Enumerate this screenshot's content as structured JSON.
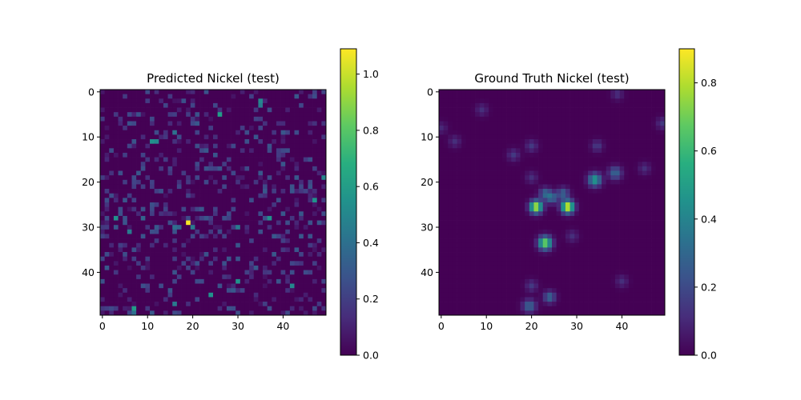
{
  "chart_data": [
    {
      "type": "heatmap",
      "title": "Predicted Nickel (test)",
      "colormap": "viridis",
      "grid": false,
      "grid_size": [
        50,
        50
      ],
      "xlim": [
        -0.5,
        49.5
      ],
      "ylim": [
        49.5,
        -0.5
      ],
      "x_ticks": [
        "0",
        "10",
        "20",
        "30",
        "40"
      ],
      "y_ticks": [
        "0",
        "10",
        "20",
        "30",
        "40"
      ],
      "colorbar": {
        "min": 0.0,
        "max": 1.09,
        "ticks": [
          "0.0",
          "0.2",
          "0.4",
          "0.6",
          "0.8",
          "1.0"
        ]
      },
      "background_value": 0.0,
      "noise_seed": 7,
      "noise_density": 0.22,
      "noise_range": [
        0.05,
        0.3
      ],
      "cells": [
        {
          "x": 19,
          "y": 29,
          "value": 1.08
        },
        {
          "x": 3,
          "y": 28,
          "value": 0.55
        },
        {
          "x": 37,
          "y": 28,
          "value": 0.55
        },
        {
          "x": 26,
          "y": 5,
          "value": 0.6
        },
        {
          "x": 11,
          "y": 11,
          "value": 0.55
        },
        {
          "x": 12,
          "y": 11,
          "value": 0.5
        },
        {
          "x": 35,
          "y": 2,
          "value": 0.5
        },
        {
          "x": 35,
          "y": 3,
          "value": 0.45
        },
        {
          "x": 49,
          "y": 19,
          "value": 0.5
        },
        {
          "x": 47,
          "y": 24,
          "value": 0.55
        },
        {
          "x": 6,
          "y": 31,
          "value": 0.45
        },
        {
          "x": 16,
          "y": 30,
          "value": 0.4
        },
        {
          "x": 17,
          "y": 30,
          "value": 0.35
        },
        {
          "x": 20,
          "y": 30,
          "value": 0.45
        },
        {
          "x": 30,
          "y": 30,
          "value": 0.45
        },
        {
          "x": 30,
          "y": 42,
          "value": 0.55
        },
        {
          "x": 24,
          "y": 45,
          "value": 0.55
        },
        {
          "x": 7,
          "y": 48,
          "value": 0.6
        },
        {
          "x": 7,
          "y": 49,
          "value": 0.4
        },
        {
          "x": 16,
          "y": 47,
          "value": 0.45
        },
        {
          "x": 42,
          "y": 43,
          "value": 0.5
        },
        {
          "x": 16,
          "y": 9,
          "value": 0.4
        },
        {
          "x": 9,
          "y": 28,
          "value": 0.35
        },
        {
          "x": 29,
          "y": 44,
          "value": 0.3
        },
        {
          "x": 44,
          "y": 32,
          "value": 0.3
        },
        {
          "x": 43,
          "y": 19,
          "value": 0.3
        },
        {
          "x": 1,
          "y": 39,
          "value": 0.3
        },
        {
          "x": 38,
          "y": 32,
          "value": 0.3
        }
      ]
    },
    {
      "type": "heatmap",
      "title": "Ground Truth Nickel (test)",
      "colormap": "viridis",
      "grid": false,
      "grid_size": [
        50,
        50
      ],
      "xlim": [
        -0.5,
        49.5
      ],
      "ylim": [
        49.5,
        -0.5
      ],
      "x_ticks": [
        "0",
        "10",
        "20",
        "30",
        "40"
      ],
      "y_ticks": [
        "0",
        "10",
        "20",
        "30",
        "40"
      ],
      "colorbar": {
        "min": 0.0,
        "max": 0.9,
        "ticks": [
          "0.0",
          "0.2",
          "0.4",
          "0.6",
          "0.8"
        ]
      },
      "background_value": 0.0,
      "blobs": [
        {
          "x": 39,
          "y": 0.5,
          "amp": 0.12,
          "sigma": 0.9
        },
        {
          "x": 9,
          "y": 4,
          "amp": 0.12,
          "sigma": 0.9
        },
        {
          "x": 49,
          "y": 7,
          "amp": 0.15,
          "sigma": 0.9
        },
        {
          "x": 0,
          "y": 8,
          "amp": 0.1,
          "sigma": 0.9
        },
        {
          "x": 3,
          "y": 11,
          "amp": 0.12,
          "sigma": 0.9
        },
        {
          "x": 20,
          "y": 12,
          "amp": 0.15,
          "sigma": 0.9
        },
        {
          "x": 34.5,
          "y": 12,
          "amp": 0.15,
          "sigma": 0.9
        },
        {
          "x": 16,
          "y": 14,
          "amp": 0.15,
          "sigma": 0.9
        },
        {
          "x": 45,
          "y": 17,
          "amp": 0.12,
          "sigma": 0.9
        },
        {
          "x": 38.5,
          "y": 18,
          "amp": 0.3,
          "sigma": 1.0
        },
        {
          "x": 34,
          "y": 19.5,
          "amp": 0.5,
          "sigma": 1.0
        },
        {
          "x": 20,
          "y": 19,
          "amp": 0.12,
          "sigma": 0.9
        },
        {
          "x": 23,
          "y": 22.5,
          "amp": 0.28,
          "sigma": 0.9
        },
        {
          "x": 27,
          "y": 22.5,
          "amp": 0.28,
          "sigma": 0.9
        },
        {
          "x": 24.5,
          "y": 23.5,
          "amp": 0.3,
          "sigma": 0.9
        },
        {
          "x": 21,
          "y": 25.5,
          "amp": 0.85,
          "sigma": 0.95
        },
        {
          "x": 28,
          "y": 25.5,
          "amp": 0.9,
          "sigma": 0.95
        },
        {
          "x": 23,
          "y": 33.5,
          "amp": 0.75,
          "sigma": 1.0
        },
        {
          "x": 29,
          "y": 32,
          "amp": 0.12,
          "sigma": 0.9
        },
        {
          "x": 40,
          "y": 42,
          "amp": 0.12,
          "sigma": 0.9
        },
        {
          "x": 20,
          "y": 43,
          "amp": 0.15,
          "sigma": 0.9
        },
        {
          "x": 24,
          "y": 45.5,
          "amp": 0.3,
          "sigma": 0.9
        },
        {
          "x": 19.5,
          "y": 47.5,
          "amp": 0.3,
          "sigma": 1.0
        }
      ]
    }
  ]
}
